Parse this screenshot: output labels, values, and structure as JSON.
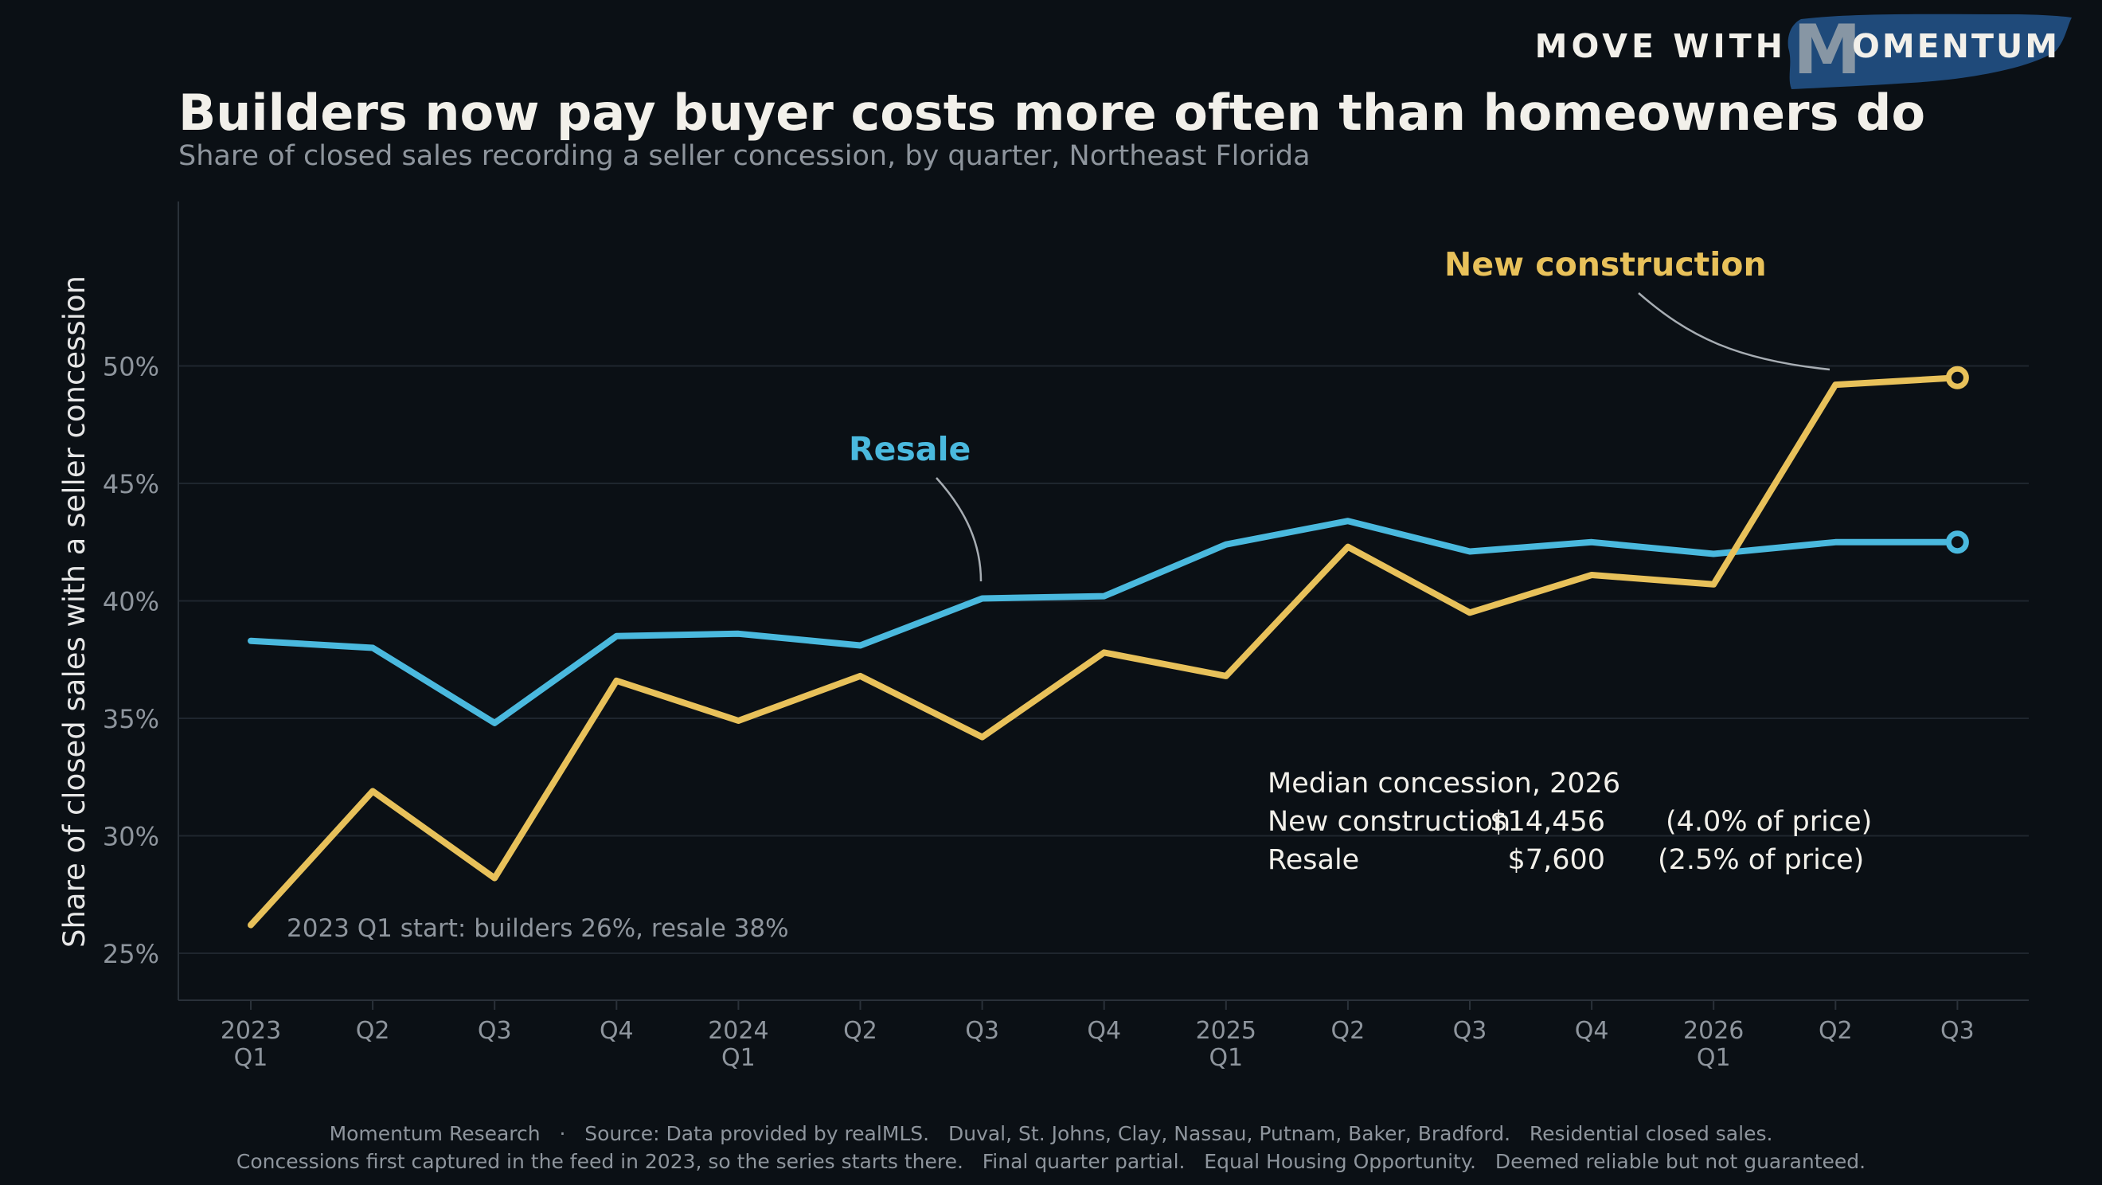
{
  "brand": {
    "prefix": "MOVE WITH",
    "mark": "M",
    "suffix": "OMENTUM",
    "brush_color": "#1f4a7a"
  },
  "colors": {
    "background": "#0b1015",
    "new_construction": "#e8c15a",
    "resale": "#4ab9de",
    "grid": "#1f262e",
    "axis_text": "#8e959d",
    "title_text": "#f2f0ea",
    "body_text": "#f2f0ea",
    "muted_text": "#8e959d"
  },
  "chart_data": {
    "type": "line",
    "title": "Builders now pay buyer costs more often than homeowners do",
    "subtitle": "Share of closed sales recording a seller concession, by quarter, Northeast Florida",
    "ylabel": "Share of closed sales with a seller concession",
    "xlabel": "",
    "ylim": [
      23,
      57
    ],
    "yticks": [
      25,
      30,
      35,
      40,
      45,
      50
    ],
    "ytick_labels": [
      "25%",
      "30%",
      "35%",
      "40%",
      "45%",
      "50%"
    ],
    "grid": true,
    "categories": [
      [
        "2023",
        "Q1"
      ],
      [
        "Q2"
      ],
      [
        "Q3"
      ],
      [
        "Q4"
      ],
      [
        "2024",
        "Q1"
      ],
      [
        "Q2"
      ],
      [
        "Q3"
      ],
      [
        "Q4"
      ],
      [
        "2025",
        "Q1"
      ],
      [
        "Q2"
      ],
      [
        "Q3"
      ],
      [
        "Q4"
      ],
      [
        "2026",
        "Q1"
      ],
      [
        "Q2"
      ],
      [
        "Q3"
      ]
    ],
    "series": [
      {
        "name": "Resale",
        "color": "#4ab9de",
        "values": [
          38.3,
          38.0,
          34.8,
          38.5,
          38.6,
          38.1,
          40.1,
          40.2,
          42.4,
          43.4,
          42.1,
          42.5,
          42.0,
          42.5,
          42.5
        ],
        "final_marker": "open-circle"
      },
      {
        "name": "New construction",
        "color": "#e8c15a",
        "values": [
          26.2,
          31.9,
          28.2,
          36.6,
          34.9,
          36.8,
          34.2,
          37.8,
          36.8,
          42.3,
          39.5,
          41.1,
          40.7,
          49.2,
          49.5
        ],
        "final_marker": "open-circle"
      }
    ],
    "annotations": {
      "start_note": "2023 Q1 start: builders 26%, resale 38%",
      "median_box": {
        "heading": "Median concession, 2026",
        "rows": [
          {
            "label": "New construction",
            "amount": "$14,456",
            "pct": "(4.0% of price)"
          },
          {
            "label": "Resale",
            "amount": "$7,600",
            "pct": "(2.5% of price)"
          }
        ]
      }
    },
    "footer": [
      "Momentum Research   ·   Source: Data provided by realMLS.   Duval, St. Johns, Clay, Nassau, Putnam, Baker, Bradford.   Residential closed sales.",
      "Concessions first captured in the feed in 2023, so the series starts there.   Final quarter partial.   Equal Housing Opportunity.   Deemed reliable but not guaranteed."
    ]
  }
}
